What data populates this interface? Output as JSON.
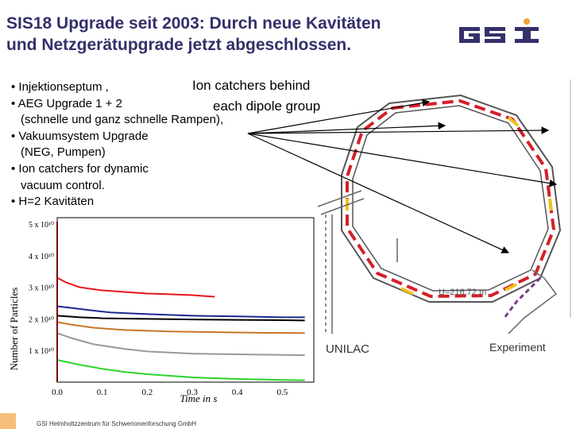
{
  "title": {
    "line1": "SIS18 Upgrade seit 2003: Durch neue Kavitäten",
    "line2": "und Netzgerätupgrade jetzt abgeschlossen."
  },
  "logo": {
    "text": "GSI",
    "icon": "gsi-logo"
  },
  "bullets": [
    "• Injektionseptum ,",
    "• AEG Upgrade 1 + 2",
    "(schnelle und ganz schnelle Rampen),",
    "• Vakuumsystem Upgrade",
    "(NEG, Pumpen)",
    "• Ion catchers for dynamic",
    "vacuum control.",
    "• H=2 Kavitäten"
  ],
  "callout": {
    "line1": "Ion catchers behind",
    "line2": "each  dipole group"
  },
  "ring": {
    "circumference": "U=216,72 m",
    "unilac": "UNILAC",
    "experiment": "Experiment"
  },
  "footer": "GSI Helmholtzzentrum für Schwerionenforschung GmbH",
  "colors": {
    "title": "#33306a",
    "red": "#e8131b",
    "blue": "#1b2a8c",
    "black": "#000000",
    "orange": "#c8742a",
    "gray": "#999999",
    "green": "#2bd42b",
    "accent": "#f7c07a"
  },
  "chart_data": {
    "type": "line",
    "xlabel": "Time in s",
    "ylabel": "Number of Particles",
    "x_ticks": [
      "0.0",
      "0.1",
      "0.2",
      "0.3",
      "0.4",
      "0.5"
    ],
    "y_ticks": [
      "1 x 10¹⁰",
      "2 x 10¹⁰",
      "3 x 10¹⁰",
      "4 x 10¹⁰",
      "5 x 10¹⁰"
    ],
    "xlim": [
      0.0,
      0.57
    ],
    "ylim": [
      0,
      5.2
    ],
    "series": [
      {
        "color": "red",
        "x": [
          0.0,
          0.02,
          0.05,
          0.1,
          0.15,
          0.2,
          0.25,
          0.3,
          0.35
        ],
        "y": [
          3.3,
          3.15,
          3.0,
          2.9,
          2.85,
          2.8,
          2.78,
          2.75,
          2.7
        ]
      },
      {
        "color": "blue",
        "x": [
          0.0,
          0.03,
          0.07,
          0.12,
          0.2,
          0.3,
          0.4,
          0.5,
          0.55
        ],
        "y": [
          2.4,
          2.35,
          2.28,
          2.2,
          2.15,
          2.1,
          2.08,
          2.05,
          2.05
        ]
      },
      {
        "color": "black",
        "x": [
          0.0,
          0.05,
          0.1,
          0.2,
          0.3,
          0.4,
          0.5,
          0.55
        ],
        "y": [
          2.1,
          2.05,
          2.02,
          2.0,
          1.98,
          1.97,
          1.96,
          1.95
        ]
      },
      {
        "color": "orange",
        "x": [
          0.0,
          0.03,
          0.08,
          0.15,
          0.25,
          0.35,
          0.45,
          0.55
        ],
        "y": [
          1.9,
          1.82,
          1.72,
          1.65,
          1.6,
          1.58,
          1.56,
          1.55
        ]
      },
      {
        "color": "gray",
        "x": [
          0.0,
          0.03,
          0.08,
          0.15,
          0.2,
          0.3,
          0.4,
          0.5,
          0.55
        ],
        "y": [
          1.55,
          1.4,
          1.2,
          1.05,
          0.97,
          0.9,
          0.88,
          0.86,
          0.85
        ]
      },
      {
        "color": "green",
        "x": [
          0.0,
          0.05,
          0.1,
          0.15,
          0.2,
          0.3,
          0.4,
          0.5,
          0.55
        ],
        "y": [
          0.7,
          0.55,
          0.42,
          0.32,
          0.25,
          0.15,
          0.1,
          0.07,
          0.06
        ]
      }
    ]
  }
}
